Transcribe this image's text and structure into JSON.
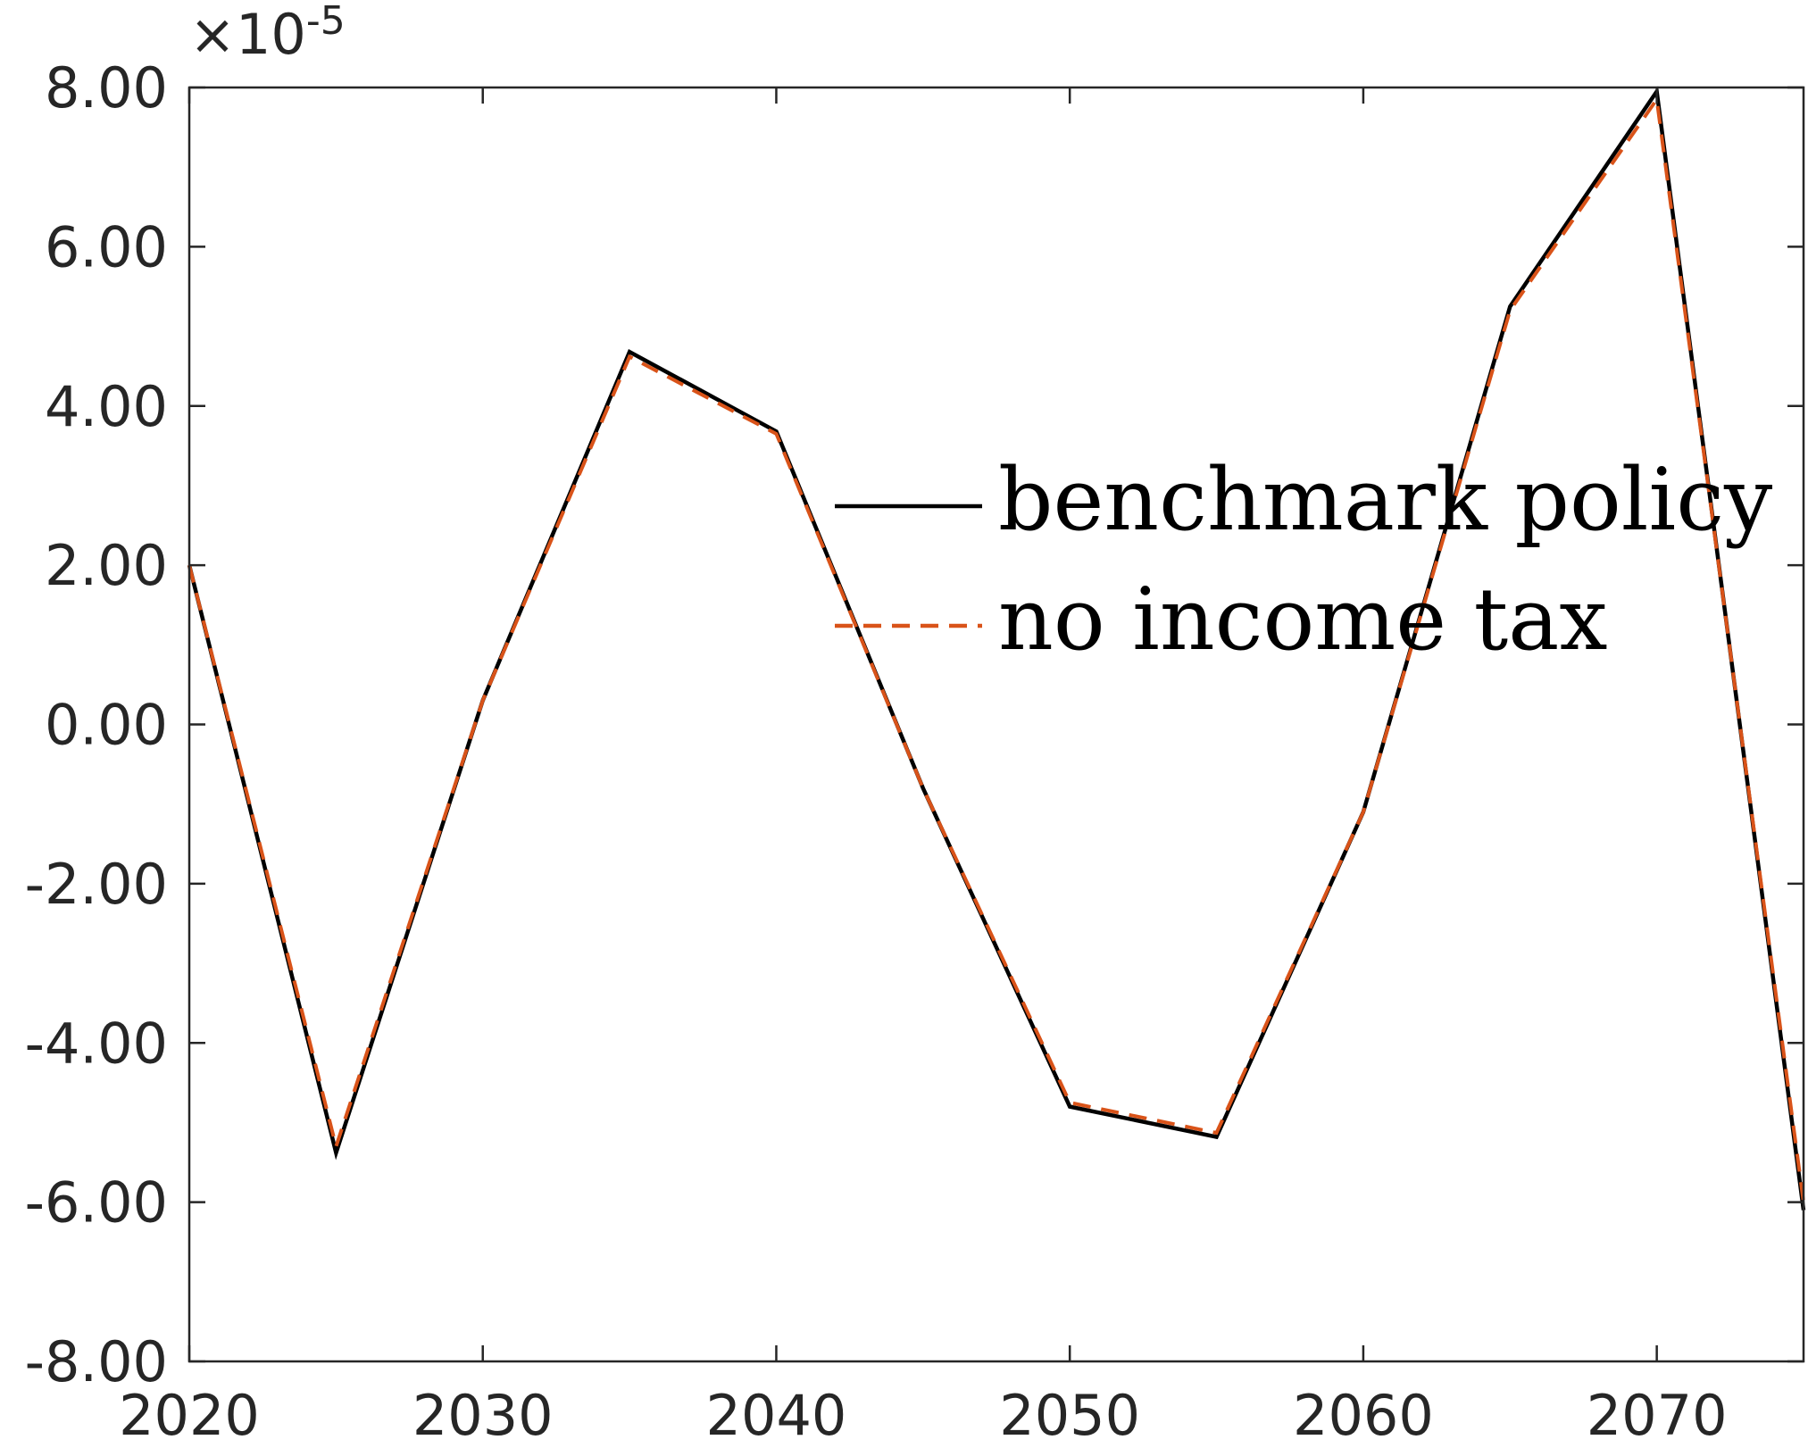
{
  "chart_data": {
    "type": "line",
    "title": "",
    "xlabel": "",
    "ylabel": "",
    "x": [
      2020,
      2025,
      2030,
      2035,
      2040,
      2045,
      2050,
      2055,
      2060,
      2065,
      2070,
      2075
    ],
    "series": [
      {
        "name": "benchmark policy",
        "color": "#000000",
        "style": "solid",
        "values": [
          2.0,
          -5.38,
          0.3,
          4.68,
          3.68,
          -0.8,
          -4.8,
          -5.18,
          -1.1,
          5.25,
          7.95,
          -6.1
        ]
      },
      {
        "name": "no income tax",
        "color": "#d95319",
        "style": "dashed",
        "values": [
          2.0,
          -5.3,
          0.3,
          4.62,
          3.65,
          -0.8,
          -4.75,
          -5.13,
          -1.1,
          5.2,
          7.85,
          -6.0
        ]
      }
    ],
    "xlim": [
      2020,
      2075
    ],
    "ylim": [
      -8,
      8
    ],
    "xticks": [
      2020,
      2030,
      2040,
      2050,
      2060,
      2070
    ],
    "xtick_labels": [
      "2020",
      "2030",
      "2040",
      "2050",
      "2060",
      "2070"
    ],
    "yticks": [
      -8,
      -6,
      -4,
      -2,
      0,
      2,
      4,
      6,
      8
    ],
    "ytick_labels": [
      "-8.00",
      "-6.00",
      "-4.00",
      "-2.00",
      "0.00",
      "2.00",
      "4.00",
      "6.00",
      "8.00"
    ],
    "y_exponent_prefix": "×10",
    "y_exponent_power": "-5",
    "grid": false,
    "legend_position": "upper-right-center",
    "box": true,
    "axis_color": "#262626"
  }
}
